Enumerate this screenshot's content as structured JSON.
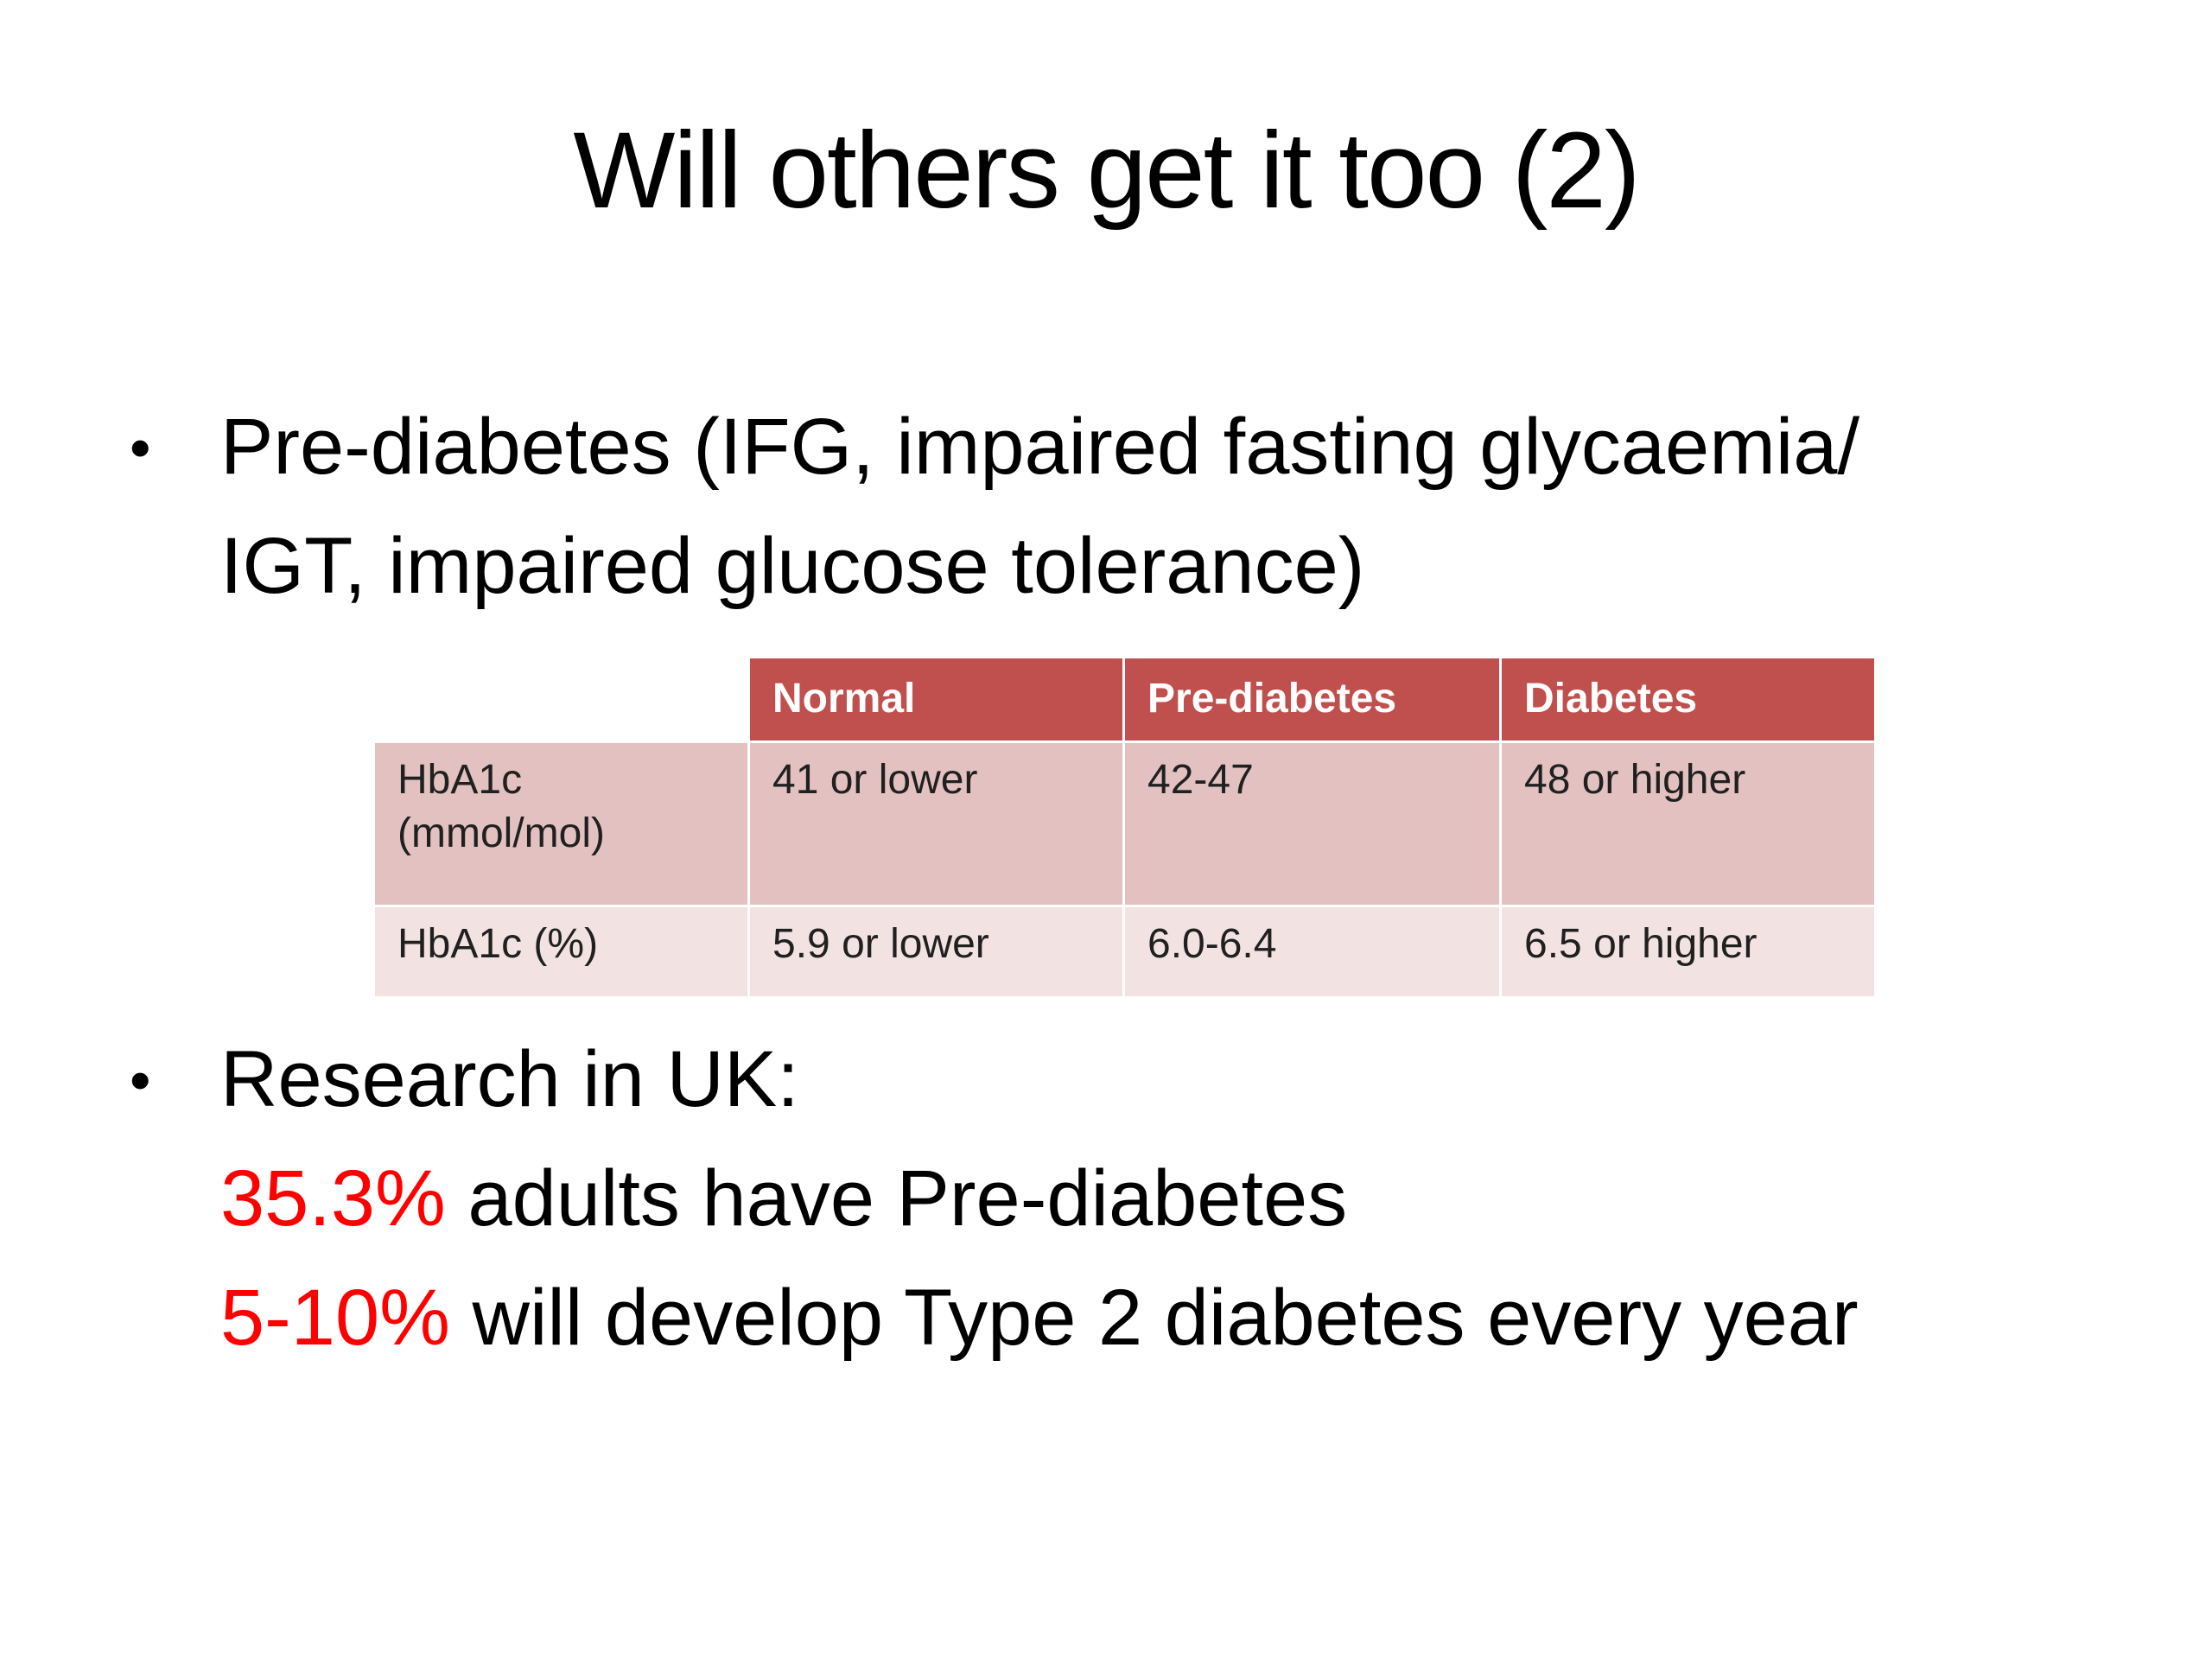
{
  "slide": {
    "title": "Will others get it too (2)"
  },
  "bullets": {
    "marker": "•",
    "prediabetes": {
      "line1": "Pre-diabetes (IFG, impaired fasting glycaemia/",
      "line2": "IGT, impaired glucose tolerance)"
    },
    "research": {
      "lead": "Research in UK:",
      "stat1": "35.3%",
      "stat1_rest": " adults have Pre-diabetes",
      "stat2": "5-10%",
      "stat2_rest": " will develop Type 2 diabetes every year"
    }
  },
  "table": {
    "headers": [
      "Normal",
      "Pre-diabetes",
      "Diabetes"
    ],
    "rows": [
      {
        "label": "HbA1c (mmol/mol)",
        "values": [
          "41 or lower",
          "42-47",
          "48 or higher"
        ]
      },
      {
        "label": "HbA1c (%)",
        "values": [
          "5.9 or lower",
          "6.0-6.4",
          "6.5 or higher"
        ]
      }
    ]
  },
  "colors": {
    "table_header_bg": "#C0504D",
    "table_row1_bg": "#E3C1C0",
    "table_row2_bg": "#F2E3E2",
    "highlight_red": "#FF0000",
    "text": "#000000"
  }
}
